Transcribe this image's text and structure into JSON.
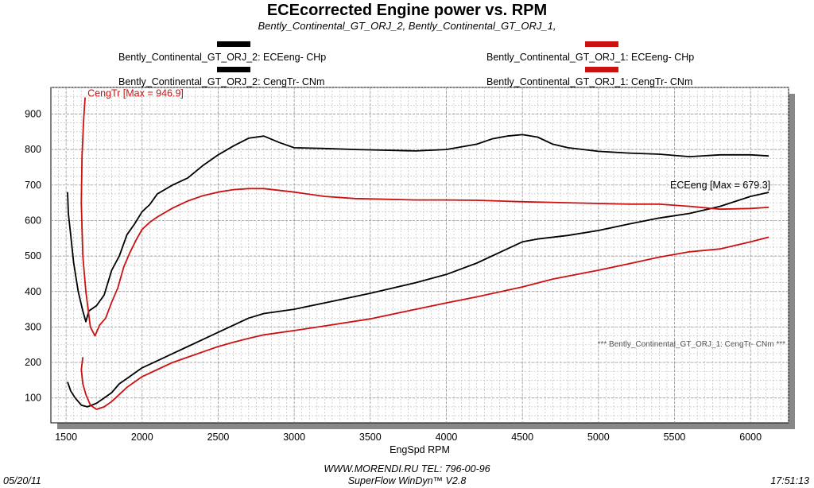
{
  "header": {
    "title": "ECEcorrected Engine power vs. RPM",
    "subtitle": "Bently_Continental_GT_ORJ_2, Bently_Continental_GT_ORJ_1,"
  },
  "legend": [
    {
      "label": "Bently_Continental_GT_ORJ_2: ECEeng- CHp",
      "color": "#000000"
    },
    {
      "label": "Bently_Continental_GT_ORJ_2: CengTr- CNm",
      "color": "#000000"
    },
    {
      "label": "Bently_Continental_GT_ORJ_1: ECEeng- CHp",
      "color": "#cc1111"
    },
    {
      "label": "Bently_Continental_GT_ORJ_1: CengTr- CNm",
      "color": "#cc1111"
    }
  ],
  "footer": {
    "url": "WWW.MORENDI.RU TEL: 796-00-96",
    "software": "SuperFlow WinDyn™ V2.8",
    "date": "05/20/11",
    "time": "17:51:13"
  },
  "chart_data": {
    "type": "line",
    "title": "ECEcorrected Engine power vs. RPM",
    "xlabel": "EngSpd  RPM",
    "ylabel": "",
    "xlim": [
      1400,
      6250
    ],
    "ylim": [
      30,
      975
    ],
    "xticks": [
      1500,
      2000,
      2500,
      3000,
      3500,
      4000,
      4500,
      5000,
      5500,
      6000
    ],
    "yticks": [
      100,
      200,
      300,
      400,
      500,
      600,
      700,
      800,
      900
    ],
    "grid": true,
    "annotations": [
      {
        "text": "CengTr [Max = 946.9]",
        "x": 1620,
        "y": 946.9,
        "color": "#cc1111"
      },
      {
        "text": "ECEeng [Max = 679.3]",
        "x": 6120,
        "y": 679.3,
        "color": "#000000"
      },
      {
        "text": "*** Bently_Continental_GT_ORJ_1: CengTr- CNm   ***",
        "color": "#555555"
      }
    ],
    "series": [
      {
        "name": "Bently_Continental_GT_ORJ_2: ECEeng- CHp",
        "color": "#000000",
        "points": [
          [
            1510,
            145
          ],
          [
            1530,
            120
          ],
          [
            1560,
            100
          ],
          [
            1600,
            80
          ],
          [
            1640,
            75
          ],
          [
            1700,
            85
          ],
          [
            1750,
            100
          ],
          [
            1800,
            115
          ],
          [
            1850,
            140
          ],
          [
            1900,
            155
          ],
          [
            1950,
            170
          ],
          [
            2000,
            185
          ],
          [
            2100,
            205
          ],
          [
            2200,
            225
          ],
          [
            2300,
            245
          ],
          [
            2400,
            265
          ],
          [
            2500,
            285
          ],
          [
            2600,
            305
          ],
          [
            2700,
            325
          ],
          [
            2800,
            338
          ],
          [
            3000,
            350
          ],
          [
            3200,
            368
          ],
          [
            3500,
            395
          ],
          [
            3800,
            425
          ],
          [
            4000,
            448
          ],
          [
            4200,
            480
          ],
          [
            4400,
            520
          ],
          [
            4500,
            540
          ],
          [
            4600,
            548
          ],
          [
            4800,
            558
          ],
          [
            5000,
            572
          ],
          [
            5200,
            590
          ],
          [
            5400,
            607
          ],
          [
            5600,
            620
          ],
          [
            5800,
            640
          ],
          [
            6000,
            668
          ],
          [
            6120,
            679.3
          ]
        ]
      },
      {
        "name": "Bently_Continental_GT_ORJ_2: CengTr- CNm",
        "color": "#000000",
        "points": [
          [
            1510,
            680
          ],
          [
            1515,
            620
          ],
          [
            1530,
            560
          ],
          [
            1550,
            480
          ],
          [
            1580,
            400
          ],
          [
            1610,
            345
          ],
          [
            1630,
            315
          ],
          [
            1650,
            345
          ],
          [
            1700,
            360
          ],
          [
            1750,
            390
          ],
          [
            1800,
            460
          ],
          [
            1850,
            500
          ],
          [
            1900,
            560
          ],
          [
            1950,
            590
          ],
          [
            2000,
            625
          ],
          [
            2050,
            645
          ],
          [
            2100,
            675
          ],
          [
            2200,
            700
          ],
          [
            2300,
            720
          ],
          [
            2400,
            755
          ],
          [
            2500,
            785
          ],
          [
            2600,
            810
          ],
          [
            2700,
            832
          ],
          [
            2800,
            838
          ],
          [
            2900,
            820
          ],
          [
            3000,
            805
          ],
          [
            3200,
            803
          ],
          [
            3400,
            800
          ],
          [
            3600,
            798
          ],
          [
            3800,
            796
          ],
          [
            4000,
            800
          ],
          [
            4200,
            815
          ],
          [
            4300,
            830
          ],
          [
            4400,
            838
          ],
          [
            4500,
            842
          ],
          [
            4600,
            835
          ],
          [
            4700,
            815
          ],
          [
            4800,
            805
          ],
          [
            5000,
            795
          ],
          [
            5200,
            790
          ],
          [
            5400,
            787
          ],
          [
            5600,
            780
          ],
          [
            5800,
            785
          ],
          [
            6000,
            785
          ],
          [
            6120,
            782
          ]
        ]
      },
      {
        "name": "Bently_Continental_GT_ORJ_1: ECEeng- CHp",
        "color": "#cc1111",
        "points": [
          [
            1610,
            215
          ],
          [
            1600,
            180
          ],
          [
            1610,
            140
          ],
          [
            1630,
            110
          ],
          [
            1660,
            80
          ],
          [
            1700,
            68
          ],
          [
            1750,
            75
          ],
          [
            1800,
            90
          ],
          [
            1850,
            110
          ],
          [
            1900,
            130
          ],
          [
            1950,
            145
          ],
          [
            2000,
            160
          ],
          [
            2100,
            180
          ],
          [
            2200,
            200
          ],
          [
            2300,
            215
          ],
          [
            2400,
            230
          ],
          [
            2500,
            245
          ],
          [
            2600,
            257
          ],
          [
            2700,
            268
          ],
          [
            2800,
            278
          ],
          [
            3000,
            290
          ],
          [
            3200,
            303
          ],
          [
            3500,
            323
          ],
          [
            3800,
            350
          ],
          [
            4000,
            368
          ],
          [
            4200,
            385
          ],
          [
            4500,
            413
          ],
          [
            4700,
            435
          ],
          [
            5000,
            460
          ],
          [
            5200,
            478
          ],
          [
            5400,
            497
          ],
          [
            5600,
            512
          ],
          [
            5800,
            520
          ],
          [
            6000,
            540
          ],
          [
            6120,
            553
          ]
        ]
      },
      {
        "name": "Bently_Continental_GT_ORJ_1: CengTr- CNm",
        "color": "#cc1111",
        "points": [
          [
            1625,
            946.9
          ],
          [
            1615,
            880
          ],
          [
            1605,
            780
          ],
          [
            1600,
            650
          ],
          [
            1610,
            500
          ],
          [
            1630,
            400
          ],
          [
            1660,
            300
          ],
          [
            1690,
            275
          ],
          [
            1720,
            305
          ],
          [
            1760,
            325
          ],
          [
            1800,
            370
          ],
          [
            1840,
            410
          ],
          [
            1880,
            470
          ],
          [
            1920,
            510
          ],
          [
            1960,
            545
          ],
          [
            2000,
            575
          ],
          [
            2050,
            595
          ],
          [
            2100,
            610
          ],
          [
            2200,
            635
          ],
          [
            2300,
            655
          ],
          [
            2400,
            670
          ],
          [
            2500,
            680
          ],
          [
            2600,
            687
          ],
          [
            2700,
            690
          ],
          [
            2800,
            690
          ],
          [
            3000,
            680
          ],
          [
            3200,
            668
          ],
          [
            3400,
            662
          ],
          [
            3600,
            660
          ],
          [
            3800,
            658
          ],
          [
            4000,
            658
          ],
          [
            4200,
            657
          ],
          [
            4500,
            653
          ],
          [
            4800,
            650
          ],
          [
            5000,
            648
          ],
          [
            5200,
            646
          ],
          [
            5400,
            646
          ],
          [
            5600,
            640
          ],
          [
            5800,
            632
          ],
          [
            6000,
            634
          ],
          [
            6120,
            637
          ]
        ]
      }
    ]
  }
}
